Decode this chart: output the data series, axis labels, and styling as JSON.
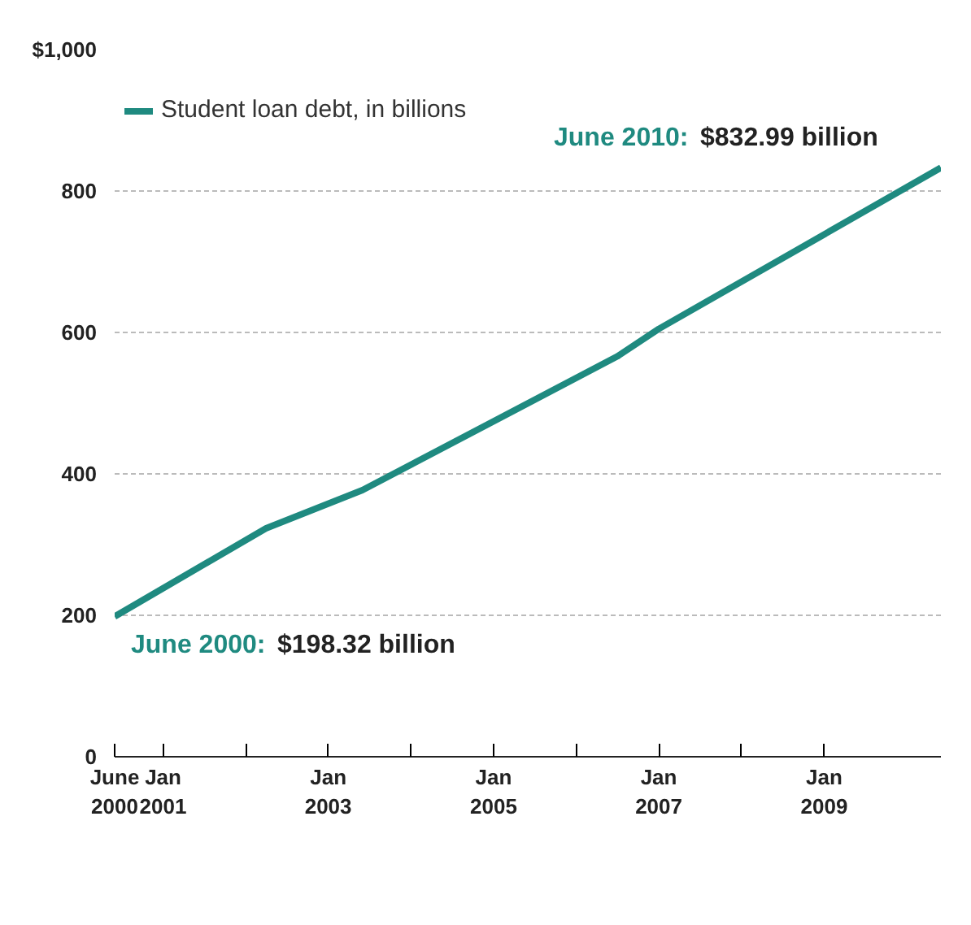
{
  "chart_data": {
    "type": "line",
    "x": [
      "2000-06",
      "2002-04",
      "2003-06",
      "2006-07",
      "2007-01",
      "2010-06"
    ],
    "series": [
      {
        "name": "Student loan debt, in billions",
        "color": "#1f8a80",
        "values": [
          198.32,
          323,
          377,
          566,
          605,
          832.99
        ]
      }
    ],
    "ylim": [
      0,
      1000
    ],
    "yticks": [
      0,
      200,
      400,
      600,
      800,
      {
        "value": 1000,
        "label": "$1,000"
      }
    ],
    "xlim": [
      "2000-06",
      "2010-06"
    ],
    "xticks": [
      {
        "value": "2000-06",
        "label": "June\n2000"
      },
      {
        "value": "2001-01",
        "label": "Jan\n2001"
      },
      {
        "value": "2002-01",
        "label": null
      },
      {
        "value": "2003-01",
        "label": "Jan\n2003"
      },
      {
        "value": "2004-01",
        "label": null
      },
      {
        "value": "2005-01",
        "label": "Jan\n2005"
      },
      {
        "value": "2006-01",
        "label": null
      },
      {
        "value": "2007-01",
        "label": "Jan\n2007"
      },
      {
        "value": "2008-01",
        "label": null
      },
      {
        "value": "2009-01",
        "label": "Jan\n2009"
      }
    ],
    "grid": "y",
    "legend": "top left",
    "marker": "none",
    "line_style": "solid",
    "annotations": [
      {
        "text": "June 2000: $198.32 billion",
        "x": "2000-06",
        "y": 198.32
      },
      {
        "text": "June 2010: $832.99 billion",
        "x": "2010-06",
        "y": 832.99
      }
    ]
  }
}
